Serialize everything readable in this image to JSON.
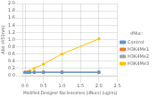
{
  "chart_data": {
    "type": "line",
    "xlabel": "Modified Designer Nucleosomes (dNucs) (ug/mL)",
    "ylabel": "Abs (450nm)",
    "legend_title": "dNuc:",
    "legend": "right",
    "grid": true,
    "xlim": [
      -0.05,
      2.5
    ],
    "ylim": [
      0,
      2
    ],
    "xticks": [
      {
        "value": 0,
        "label": "0.0"
      },
      0.5,
      {
        "value": 1,
        "label": "1.0"
      },
      1.5,
      {
        "value": 2,
        "label": "2.0"
      },
      2.5
    ],
    "yticks": [
      {
        "value": 0,
        "label": "0.0"
      },
      0.2,
      0.4,
      0.6,
      0.8,
      {
        "value": 1,
        "label": "1.0"
      },
      1.2,
      1.4,
      1.6,
      1.8,
      {
        "value": 2,
        "label": "2.0"
      }
    ],
    "x": [
      0.0,
      0.063,
      0.125,
      0.25,
      0.5,
      1.0,
      2.0
    ],
    "series": [
      {
        "name": "Control",
        "color": "#5B9BD5",
        "marker": "square",
        "values": [
          0.09,
          0.09,
          0.09,
          0.09,
          0.09,
          0.09,
          0.09
        ]
      },
      {
        "name": "H3K4Me1",
        "color": "#ED7D31",
        "marker": "square",
        "values": [
          0.09,
          0.09,
          0.09,
          0.1,
          0.1,
          0.1,
          0.1
        ]
      },
      {
        "name": "H3K4Me2",
        "color": "#A5A5A5",
        "marker": "square",
        "values": [
          0.09,
          0.09,
          0.09,
          0.09,
          0.09,
          0.09,
          0.09
        ]
      },
      {
        "name": "H3K4Me3",
        "color": "#FFC000",
        "marker": "diamond",
        "values": [
          0.09,
          0.1,
          0.13,
          0.2,
          0.32,
          0.6,
          1.02
        ]
      }
    ]
  }
}
